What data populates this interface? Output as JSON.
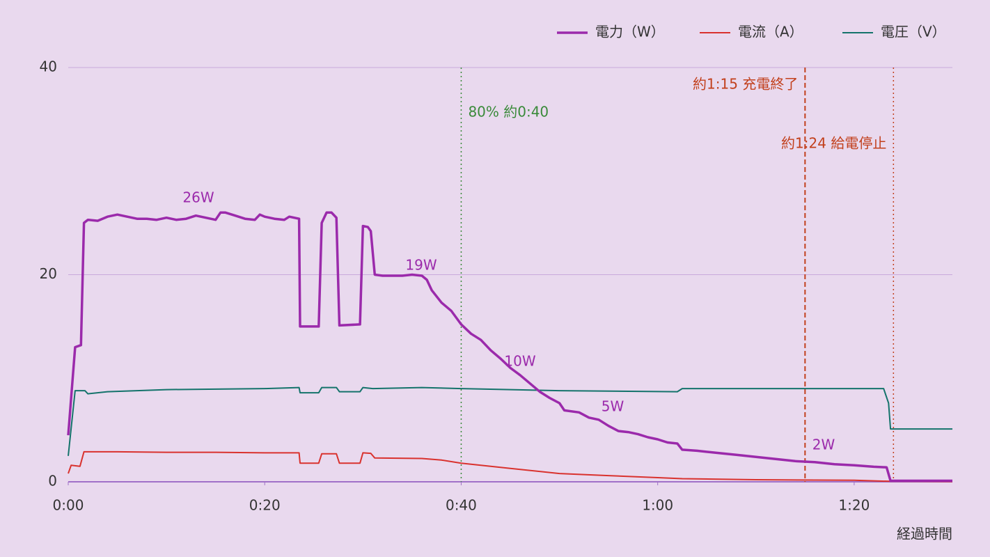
{
  "chart_data": {
    "type": "line",
    "x_label": "経過時間",
    "xlim": [
      0,
      90
    ],
    "xticks": [
      {
        "value": 0,
        "label": "0:00"
      },
      {
        "value": 20,
        "label": "0:20"
      },
      {
        "value": 40,
        "label": "0:40"
      },
      {
        "value": 60,
        "label": "1:00"
      },
      {
        "value": 80,
        "label": "1:20"
      }
    ],
    "ylim": [
      0,
      40
    ],
    "yticks": [
      0,
      20,
      40
    ],
    "grid": true,
    "legend": "top-right",
    "series": [
      {
        "name": "電力（W）",
        "color": "#9b2aab",
        "line_width": 3.5,
        "x": [
          0,
          0.7,
          1.3,
          1.6,
          2,
          3,
          4,
          5,
          6,
          7,
          8,
          9,
          10,
          11,
          12,
          13,
          14,
          15,
          15.5,
          16,
          17,
          18,
          19,
          19.5,
          20,
          21,
          22,
          22.5,
          23,
          23.5,
          23.6,
          25.5,
          25.8,
          26.3,
          26.8,
          27.3,
          27.6,
          29.7,
          30,
          30.5,
          30.8,
          31.2,
          32,
          33,
          34,
          35,
          36,
          36.5,
          37,
          38,
          39,
          40,
          41,
          42,
          43,
          44,
          45,
          46,
          47,
          48,
          49,
          50,
          50.5,
          52,
          53,
          54,
          55,
          56,
          57,
          58,
          59,
          60,
          61,
          62,
          62.5,
          64,
          66,
          68,
          70,
          72,
          74,
          76,
          78,
          80,
          82,
          83.3,
          83.7,
          90
        ],
        "values": [
          4.5,
          13,
          13.2,
          25,
          25.3,
          25.2,
          25.6,
          25.8,
          25.6,
          25.4,
          25.4,
          25.3,
          25.5,
          25.3,
          25.4,
          25.7,
          25.5,
          25.3,
          26,
          26,
          25.7,
          25.4,
          25.3,
          25.8,
          25.6,
          25.4,
          25.3,
          25.6,
          25.5,
          25.4,
          15,
          15,
          25,
          26,
          26,
          25.5,
          15.1,
          15.2,
          24.7,
          24.6,
          24.2,
          20,
          19.9,
          19.9,
          19.9,
          20,
          19.9,
          19.5,
          18.5,
          17.3,
          16.5,
          15.2,
          14.3,
          13.7,
          12.7,
          11.9,
          11,
          10.3,
          9.5,
          8.7,
          8.1,
          7.6,
          6.9,
          6.7,
          6.2,
          6,
          5.4,
          4.9,
          4.8,
          4.6,
          4.3,
          4.1,
          3.8,
          3.7,
          3.1,
          3,
          2.8,
          2.6,
          2.4,
          2.2,
          2,
          1.9,
          1.7,
          1.6,
          1.45,
          1.4,
          0.1,
          0.1
        ]
      },
      {
        "name": "電流（A）",
        "color": "#d9322e",
        "line_width": 2,
        "x": [
          0,
          0.3,
          1.2,
          1.6,
          5,
          10,
          15,
          20,
          23.5,
          23.6,
          25.5,
          25.8,
          27.3,
          27.6,
          29.7,
          30,
          30.8,
          31.2,
          36,
          38,
          40,
          45,
          50,
          55,
          60,
          62.5,
          70,
          80,
          83.7,
          90
        ],
        "values": [
          0.8,
          1.6,
          1.5,
          2.9,
          2.9,
          2.85,
          2.85,
          2.8,
          2.8,
          1.8,
          1.8,
          2.7,
          2.7,
          1.8,
          1.8,
          2.8,
          2.75,
          2.3,
          2.25,
          2.1,
          1.8,
          1.3,
          0.8,
          0.6,
          0.4,
          0.3,
          0.2,
          0.15,
          0.05,
          0.02
        ]
      },
      {
        "name": "電圧（V）",
        "color": "#14736b",
        "line_width": 2,
        "x": [
          0,
          0.7,
          1.7,
          2,
          4,
          10,
          20,
          23.5,
          23.6,
          25.5,
          25.8,
          27.3,
          27.6,
          29.7,
          30,
          31,
          36,
          40,
          50,
          62,
          62.5,
          83,
          83.5,
          83.7,
          90
        ],
        "values": [
          2.5,
          8.8,
          8.8,
          8.5,
          8.7,
          8.9,
          9,
          9.1,
          8.6,
          8.6,
          9.1,
          9.1,
          8.7,
          8.7,
          9.1,
          9,
          9.1,
          9,
          8.8,
          8.7,
          9,
          9,
          7.6,
          5.1,
          5.1
        ]
      }
    ],
    "vlines": [
      {
        "x": 40,
        "label": "80% 約0:40",
        "color": "#3a8a3a",
        "style": "dotted"
      },
      {
        "x": 75,
        "label": "約1:15 充電終了",
        "color": "#c2401c",
        "style": "dashed"
      },
      {
        "x": 84,
        "label": "約1:24 給電停止",
        "color": "#c2401c",
        "style": "dotted"
      }
    ],
    "annotations": [
      "26W",
      "19W",
      "10W",
      "5W",
      "2W"
    ],
    "annotation_color": "#9b2aab"
  }
}
